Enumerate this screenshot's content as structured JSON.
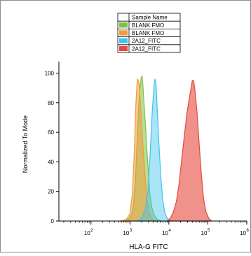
{
  "chart_data": {
    "type": "area",
    "title": "",
    "xlabel": "HLA-G FITC",
    "ylabel": "Normalized To Mode",
    "x_scale": "log",
    "xlim": [
      15,
      1000000
    ],
    "ylim": [
      0,
      105
    ],
    "x_ticks": [
      {
        "value": 100,
        "base": "10",
        "exp": "2"
      },
      {
        "value": 1000,
        "base": "10",
        "exp": "3"
      },
      {
        "value": 10000,
        "base": "10",
        "exp": "4"
      },
      {
        "value": 100000,
        "base": "10",
        "exp": "5"
      },
      {
        "value": 1000000,
        "base": "10",
        "exp": "6"
      }
    ],
    "y_ticks": [
      0,
      20,
      40,
      60,
      80,
      100
    ],
    "legend": {
      "placement": "top-center",
      "header": "Sample Name",
      "entries": [
        {
          "label": "BLANK FMO",
          "color": "#7dc242"
        },
        {
          "label": "BLANK FMO",
          "color": "#f39a3c"
        },
        {
          "label": "2A12_FITC",
          "color": "#41c3ee"
        },
        {
          "label": "2A12_FITC",
          "color": "#e8473e"
        }
      ]
    },
    "series": [
      {
        "color": "#7dc242",
        "fill": "rgba(125,194,66,0.55)",
        "points": [
          [
            600,
            0
          ],
          [
            900,
            1
          ],
          [
            1100,
            4
          ],
          [
            1250,
            12
          ],
          [
            1400,
            30
          ],
          [
            1550,
            58
          ],
          [
            1700,
            80
          ],
          [
            1850,
            92
          ],
          [
            1950,
            97
          ],
          [
            2050,
            98
          ],
          [
            2150,
            92
          ],
          [
            2300,
            80
          ],
          [
            2500,
            65
          ],
          [
            2700,
            50
          ],
          [
            2950,
            35
          ],
          [
            3200,
            20
          ],
          [
            3600,
            10
          ],
          [
            4200,
            4
          ],
          [
            5000,
            1
          ],
          [
            6500,
            0
          ]
        ]
      },
      {
        "color": "#f39a3c",
        "fill": "rgba(243,154,60,0.55)",
        "points": [
          [
            550,
            0
          ],
          [
            800,
            1
          ],
          [
            1000,
            5
          ],
          [
            1150,
            18
          ],
          [
            1300,
            48
          ],
          [
            1400,
            75
          ],
          [
            1480,
            88
          ],
          [
            1550,
            96
          ],
          [
            1650,
            95
          ],
          [
            1750,
            92
          ],
          [
            1850,
            80
          ],
          [
            2000,
            65
          ],
          [
            2200,
            47
          ],
          [
            2450,
            30
          ],
          [
            2750,
            15
          ],
          [
            3100,
            6
          ],
          [
            3600,
            2
          ],
          [
            4500,
            0
          ]
        ]
      },
      {
        "color": "#41c3ee",
        "fill": "rgba(65,195,238,0.45)",
        "points": [
          [
            1500,
            0
          ],
          [
            2000,
            2
          ],
          [
            2500,
            8
          ],
          [
            2900,
            20
          ],
          [
            3300,
            45
          ],
          [
            3700,
            72
          ],
          [
            4100,
            90
          ],
          [
            4400,
            96
          ],
          [
            4700,
            92
          ],
          [
            5100,
            72
          ],
          [
            5600,
            50
          ],
          [
            6200,
            30
          ],
          [
            6900,
            15
          ],
          [
            7800,
            6
          ],
          [
            9000,
            2
          ],
          [
            11000,
            0
          ]
        ]
      },
      {
        "color": "#e8473e",
        "fill": "rgba(232,71,62,0.6)",
        "points": [
          [
            9000,
            0
          ],
          [
            11000,
            2
          ],
          [
            13000,
            6
          ],
          [
            15500,
            13
          ],
          [
            18000,
            24
          ],
          [
            21000,
            40
          ],
          [
            25000,
            58
          ],
          [
            29000,
            73
          ],
          [
            33000,
            82
          ],
          [
            37000,
            90
          ],
          [
            40000,
            95
          ],
          [
            43000,
            95
          ],
          [
            47000,
            88
          ],
          [
            53000,
            73
          ],
          [
            60000,
            52
          ],
          [
            68000,
            32
          ],
          [
            78000,
            15
          ],
          [
            90000,
            6
          ],
          [
            105000,
            2
          ],
          [
            125000,
            0
          ]
        ]
      }
    ]
  }
}
